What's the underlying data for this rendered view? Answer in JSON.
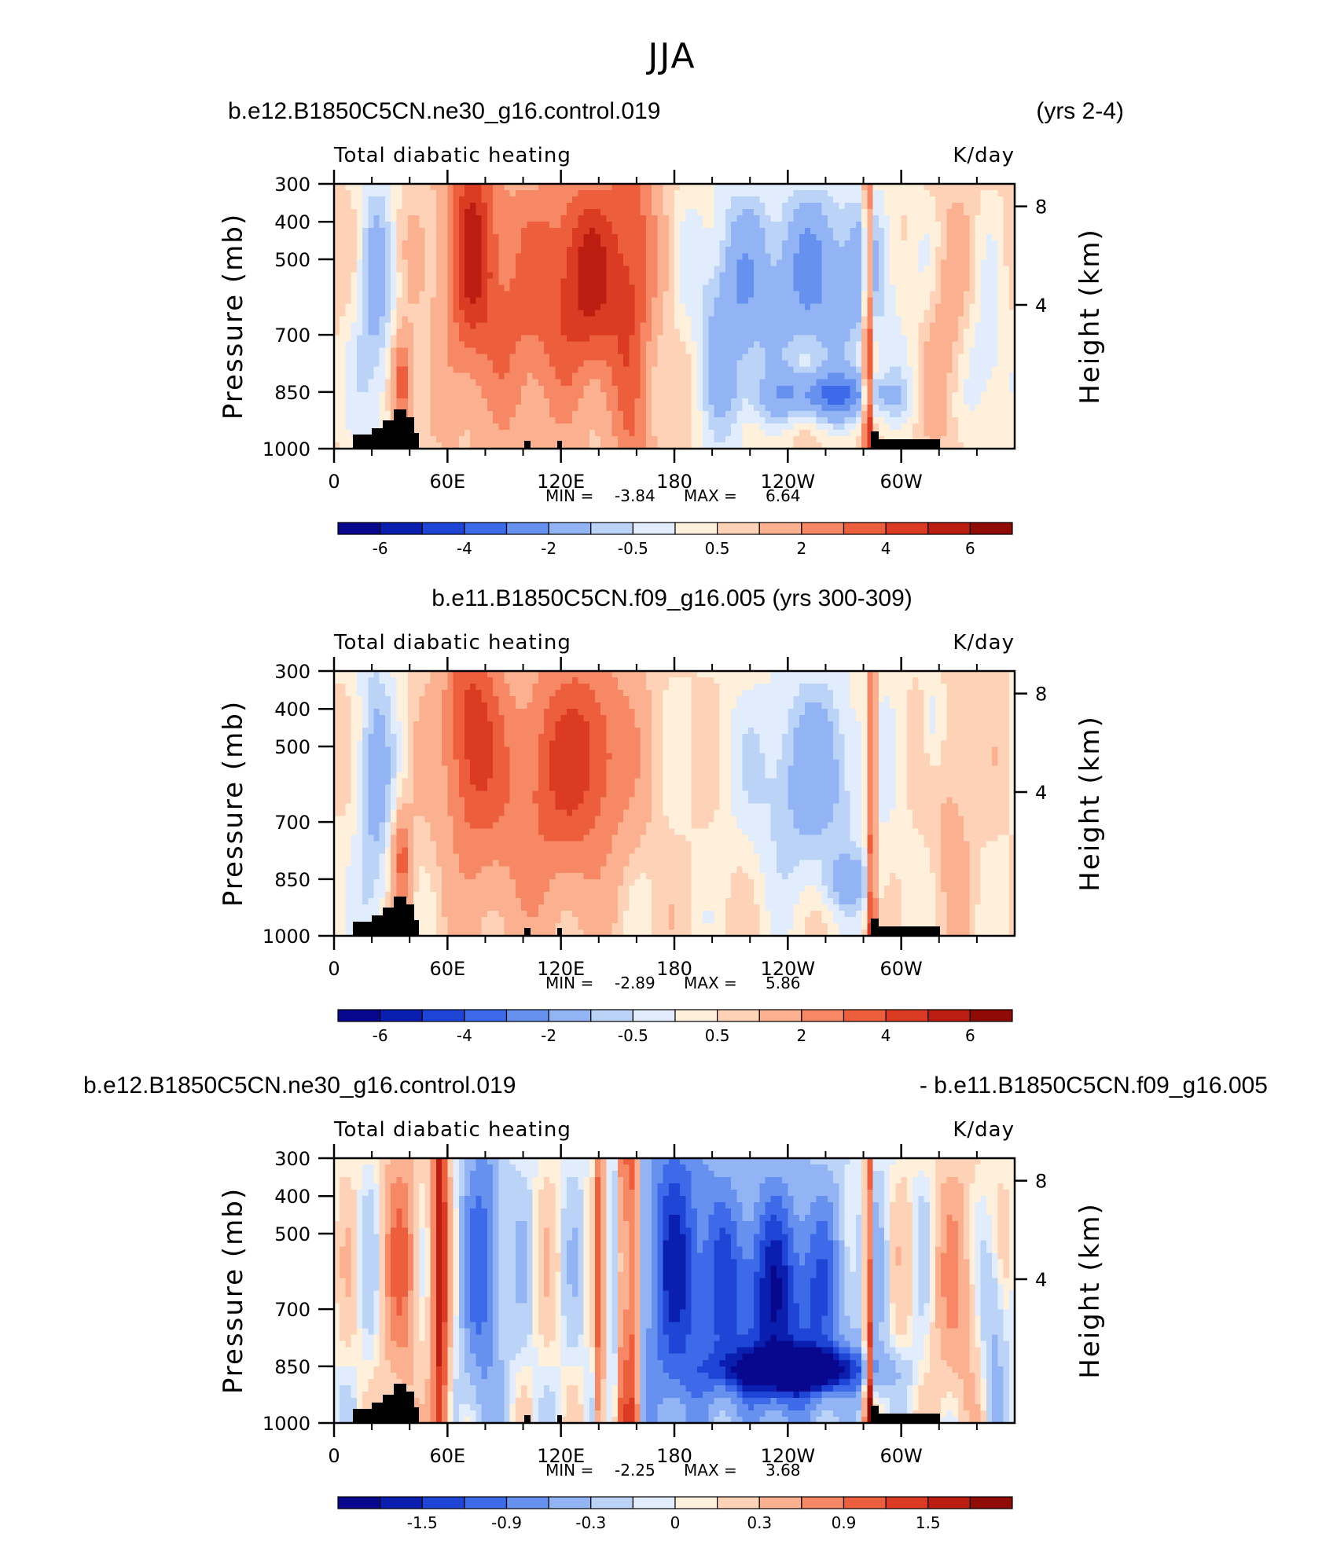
{
  "figure_title": "JJA",
  "colors": {
    "palette": [
      "#08088f",
      "#0a1fb0",
      "#1f45d6",
      "#3d6ae8",
      "#6691ee",
      "#93b4f4",
      "#bcd3f8",
      "#e1ecfd",
      "#fff0dc",
      "#fdd2b6",
      "#fbb08f",
      "#f68866",
      "#ec5e3c",
      "#da3b22",
      "#bb1d10",
      "#8f0b06"
    ],
    "terrain": "#000000"
  },
  "chart_data": [
    {
      "type": "heatmap",
      "header_left": "b.e12.B1850C5CN.ne30_g16.control.019",
      "header_right": "(yrs 2-4)",
      "header_align": "split",
      "title_left": "Total diabatic heating",
      "title_right": "K/day",
      "ylabel": "Pressure (mb)",
      "ylabel_right": "Height (km)",
      "y_ticks": [
        "300",
        "400",
        "500",
        "700",
        "850",
        "1000"
      ],
      "y_ticks_right": [
        "8",
        "4"
      ],
      "x_ticks": [
        "0",
        "60E",
        "120E",
        "180",
        "120W",
        "60W"
      ],
      "min_label": "MIN =",
      "min_value": "-3.84",
      "max_label": "MAX =",
      "max_value": "6.64",
      "colorbar_labels": [
        "-6",
        "-4",
        "-2",
        "-0.5",
        "0.5",
        "2",
        "4",
        "6"
      ],
      "levels": [
        -7,
        -6,
        -5,
        -4,
        -3,
        -2,
        -1,
        -0.5,
        0,
        0.5,
        1,
        2,
        3,
        4,
        5,
        6,
        7
      ]
    },
    {
      "type": "heatmap",
      "header_left": "b.e11.B1850C5CN.f09_g16.005 (yrs 300-309)",
      "header_right": "",
      "header_align": "center",
      "title_left": "Total diabatic heating",
      "title_right": "K/day",
      "ylabel": "Pressure (mb)",
      "ylabel_right": "Height (km)",
      "y_ticks": [
        "300",
        "400",
        "500",
        "700",
        "850",
        "1000"
      ],
      "y_ticks_right": [
        "8",
        "4"
      ],
      "x_ticks": [
        "0",
        "60E",
        "120E",
        "180",
        "120W",
        "60W"
      ],
      "min_label": "MIN =",
      "min_value": "-2.89",
      "max_label": "MAX =",
      "max_value": "5.86",
      "colorbar_labels": [
        "-6",
        "-4",
        "-2",
        "-0.5",
        "0.5",
        "2",
        "4",
        "6"
      ],
      "levels": [
        -7,
        -6,
        -5,
        -4,
        -3,
        -2,
        -1,
        -0.5,
        0,
        0.5,
        1,
        2,
        3,
        4,
        5,
        6,
        7
      ]
    },
    {
      "type": "heatmap",
      "header_left": "b.e12.B1850C5CN.ne30_g16.control.019",
      "header_right": "- b.e11.B1850C5CN.f09_g16.005",
      "header_align": "split-wide",
      "title_left": "Total diabatic heating",
      "title_right": "K/day",
      "ylabel": "Pressure (mb)",
      "ylabel_right": "Height (km)",
      "y_ticks": [
        "300",
        "400",
        "500",
        "700",
        "850",
        "1000"
      ],
      "y_ticks_right": [
        "8",
        "4"
      ],
      "x_ticks": [
        "0",
        "60E",
        "120E",
        "180",
        "120W",
        "60W"
      ],
      "min_label": "MIN =",
      "min_value": "-2.25",
      "max_label": "MAX =",
      "max_value": "3.68",
      "colorbar_labels": [
        "-1.5",
        "-0.9",
        "-0.3",
        "0",
        "0.3",
        "0.9",
        "1.5"
      ],
      "levels": [
        -2.1,
        -1.8,
        -1.5,
        -1.2,
        -0.9,
        -0.6,
        -0.3,
        -0.1,
        0,
        0.1,
        0.3,
        0.6,
        0.9,
        1.2,
        1.5,
        1.8,
        2.1
      ]
    }
  ]
}
